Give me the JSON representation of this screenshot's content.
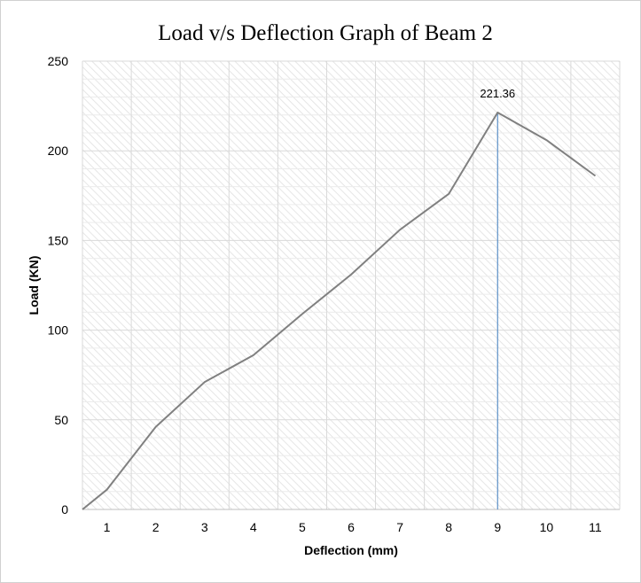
{
  "chart_data": {
    "type": "line",
    "title": "Load v/s Deflection Graph of  Beam 2",
    "xlabel": "Deflection (mm)",
    "ylabel": "Load (KN)",
    "x_ticks": [
      "1",
      "2",
      "3",
      "4",
      "5",
      "6",
      "7",
      "8",
      "9",
      "10",
      "11"
    ],
    "y_ticks": [
      "0",
      "50",
      "100",
      "150",
      "200",
      "250"
    ],
    "ylim": [
      0,
      250
    ],
    "grid": true,
    "series": [
      {
        "x": [
          0.5,
          1,
          2,
          3,
          4,
          5,
          6,
          7,
          8,
          9,
          10,
          11
        ],
        "values": [
          0,
          11,
          46,
          71,
          86,
          109,
          131,
          156,
          176,
          221.36,
          206,
          186
        ]
      }
    ],
    "annotation": {
      "x": 9,
      "y": 221.36,
      "label": "221.36",
      "drop_line": true
    },
    "colors": {
      "line": "#808080",
      "drop_line": "#5b8fc7",
      "grid": "#d9d9d9"
    }
  }
}
